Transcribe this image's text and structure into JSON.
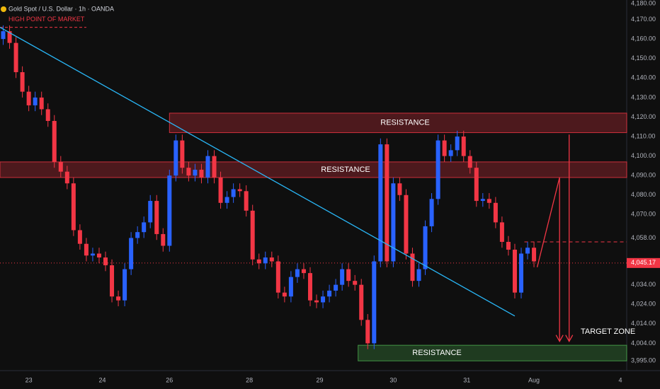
{
  "chart_data": {
    "type": "candlestick",
    "title": "Gold Spot / U.S. Dollar · 1h · OANDA",
    "xlim": [
      0,
      196
    ],
    "ylim": [
      3990,
      4180
    ],
    "xticks": [
      {
        "value": 9,
        "label": "23"
      },
      {
        "value": 32,
        "label": "24"
      },
      {
        "value": 53,
        "label": "26"
      },
      {
        "value": 78,
        "label": "28"
      },
      {
        "value": 100,
        "label": "29"
      },
      {
        "value": 123,
        "label": "30"
      },
      {
        "value": 146,
        "label": "31"
      },
      {
        "value": 167,
        "label": "Aug"
      },
      {
        "value": 194,
        "label": "4"
      }
    ],
    "yticks": [
      {
        "value": 4180,
        "label": "4,180.00"
      },
      {
        "value": 4170,
        "label": "4,170.00"
      },
      {
        "value": 4160,
        "label": "4,160.00"
      },
      {
        "value": 4150,
        "label": "4,150.00"
      },
      {
        "value": 4140,
        "label": "4,140.00"
      },
      {
        "value": 4130,
        "label": "4,130.00"
      },
      {
        "value": 4120,
        "label": "4,120.00"
      },
      {
        "value": 4110,
        "label": "4,110.00"
      },
      {
        "value": 4100,
        "label": "4,100.00"
      },
      {
        "value": 4090,
        "label": "4,090.00"
      },
      {
        "value": 4080,
        "label": "4,080.00"
      },
      {
        "value": 4070,
        "label": "4,070.00"
      },
      {
        "value": 4058,
        "label": "4,058.00"
      },
      {
        "value": 4034,
        "label": "4,034.00"
      },
      {
        "value": 4024,
        "label": "4,024.00"
      },
      {
        "value": 4014,
        "label": "4,014.00"
      },
      {
        "value": 4004,
        "label": "4,004.00"
      },
      {
        "value": 3995,
        "label": "3,995.00"
      }
    ],
    "last_price": {
      "value": 4045.17,
      "label": "4,045.17"
    },
    "up_color": "#2962ff",
    "down_color": "#f23645",
    "series": [
      {
        "x": [
          1,
          3,
          5,
          7,
          9,
          11,
          13,
          15,
          17,
          19,
          21,
          23,
          25,
          27,
          29,
          31,
          33,
          35,
          37,
          39,
          41,
          43,
          45,
          47,
          49,
          51,
          53,
          55,
          57,
          59,
          61,
          63,
          65,
          67,
          69,
          71,
          73,
          75,
          77,
          79,
          81,
          83,
          85,
          87,
          89,
          91,
          93,
          95,
          97,
          99,
          101,
          103,
          105,
          107,
          109,
          111,
          113,
          115,
          117,
          119,
          121,
          123,
          125,
          127,
          129,
          131,
          133,
          135,
          137,
          139,
          141,
          143,
          145,
          147,
          149,
          151,
          153,
          155,
          157,
          159,
          161,
          163,
          165,
          167
        ],
        "open": [
          4160,
          4164,
          4158,
          4143,
          4133,
          4126,
          4130,
          4124,
          4118,
          4097,
          4092,
          4086,
          4062,
          4055,
          4049,
          4050,
          4048,
          4044,
          4028,
          4026,
          4042,
          4058,
          4061,
          4066,
          4077,
          4060,
          4054,
          4090,
          4108,
          4094,
          4090,
          4093,
          4089,
          4100,
          4089,
          4076,
          4079,
          4083,
          4082,
          4072,
          4047,
          4045,
          4048,
          4046,
          4030,
          4028,
          4038,
          4042,
          4040,
          4026,
          4025,
          4028,
          4031,
          4034,
          4042,
          4036,
          4034,
          4016,
          4004,
          4046,
          4106,
          4046,
          4086,
          4080,
          4050,
          4036,
          4042,
          4064,
          4078,
          4108,
          4100,
          4103,
          4110,
          4100,
          4094,
          4077,
          4078,
          4076,
          4066,
          4056,
          4052,
          4030,
          4050,
          4053
        ],
        "high": [
          4167,
          4167,
          4161,
          4146,
          4136,
          4133,
          4133,
          4127,
          4121,
          4100,
          4095,
          4089,
          4065,
          4058,
          4053,
          4053,
          4051,
          4047,
          4031,
          4045,
          4061,
          4064,
          4069,
          4080,
          4080,
          4063,
          4093,
          4111,
          4111,
          4097,
          4096,
          4096,
          4103,
          4103,
          4092,
          4082,
          4086,
          4086,
          4085,
          4075,
          4050,
          4051,
          4051,
          4049,
          4033,
          4041,
          4045,
          4045,
          4043,
          4029,
          4031,
          4034,
          4037,
          4045,
          4045,
          4039,
          4037,
          4019,
          4049,
          4109,
          4109,
          4089,
          4089,
          4083,
          4053,
          4045,
          4067,
          4081,
          4111,
          4111,
          4106,
          4113,
          4113,
          4103,
          4097,
          4081,
          4081,
          4079,
          4069,
          4059,
          4055,
          4053,
          4056,
          4056
        ],
        "low": [
          4157,
          4155,
          4140,
          4130,
          4123,
          4123,
          4121,
          4115,
          4094,
          4089,
          4083,
          4059,
          4052,
          4046,
          4046,
          4045,
          4041,
          4025,
          4023,
          4023,
          4039,
          4055,
          4058,
          4063,
          4057,
          4051,
          4051,
          4087,
          4091,
          4087,
          4087,
          4086,
          4086,
          4086,
          4073,
          4073,
          4076,
          4079,
          4069,
          4044,
          4042,
          4042,
          4043,
          4027,
          4025,
          4025,
          4035,
          4037,
          4023,
          4022,
          4022,
          4025,
          4028,
          4031,
          4033,
          4031,
          4013,
          4001,
          4001,
          4043,
          4043,
          4043,
          4077,
          4047,
          4033,
          4033,
          4039,
          4061,
          4075,
          4097,
          4097,
          4100,
          4097,
          4091,
          4074,
          4074,
          4073,
          4063,
          4053,
          4049,
          4027,
          4027,
          4047,
          4043
        ],
        "close": [
          4164,
          4158,
          4143,
          4133,
          4126,
          4130,
          4124,
          4118,
          4097,
          4092,
          4086,
          4062,
          4055,
          4049,
          4050,
          4048,
          4044,
          4028,
          4026,
          4042,
          4058,
          4061,
          4066,
          4077,
          4060,
          4054,
          4090,
          4108,
          4094,
          4090,
          4093,
          4089,
          4100,
          4089,
          4076,
          4079,
          4083,
          4082,
          4072,
          4047,
          4045,
          4048,
          4046,
          4030,
          4028,
          4038,
          4042,
          4040,
          4026,
          4025,
          4028,
          4031,
          4034,
          4042,
          4036,
          4034,
          4016,
          4004,
          4046,
          4106,
          4046,
          4086,
          4080,
          4050,
          4036,
          4042,
          4064,
          4078,
          4108,
          4100,
          4103,
          4110,
          4100,
          4094,
          4077,
          4078,
          4076,
          4066,
          4056,
          4052,
          4030,
          4050,
          4053,
          4046
        ]
      }
    ],
    "zones": [
      {
        "label": "RESISTANCE",
        "low": 4112,
        "high": 4122,
        "x_start": 53,
        "color": "#f23645"
      },
      {
        "label": "RESISTANCE",
        "low": 4089,
        "high": 4097,
        "x_start": 0,
        "color": "#f23645"
      },
      {
        "label": "RESISTANCE",
        "low": 3995,
        "high": 4003,
        "x_start": 112,
        "color": "#4caf50"
      }
    ],
    "trendline": {
      "x": [
        0,
        161
      ],
      "y": [
        4166,
        4018
      ],
      "color": "#29b6f6"
    },
    "high_point": {
      "label": "HIGH POINT OF MARKET",
      "value": 4166,
      "x": [
        0,
        27
      ],
      "color": "#f23645"
    },
    "level_line": {
      "value": 4056,
      "x": [
        164,
        196
      ],
      "color": "#f23645"
    },
    "projections": [
      {
        "x": [
          168,
          175,
          175
        ],
        "y": [
          4043,
          4089,
          4005
        ]
      },
      {
        "x": [
          178,
          178
        ],
        "y": [
          4111,
          4005
        ]
      }
    ],
    "target_label": "TARGET ZONE"
  }
}
